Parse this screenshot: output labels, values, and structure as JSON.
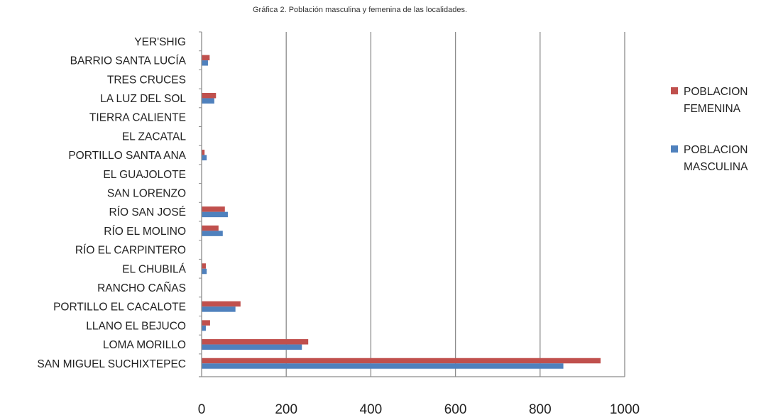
{
  "chart_data": {
    "type": "bar",
    "orientation": "horizontal",
    "title": "Gráfica 2. Población masculina y femenina de las localidades.",
    "xlabel": "",
    "ylabel": "",
    "xlim": [
      0,
      1000
    ],
    "xticks": [
      "0",
      "200",
      "400",
      "600",
      "800",
      "1000"
    ],
    "grid": "vertical",
    "legend_position": "right",
    "categories": [
      "SAN MIGUEL SUCHIXTEPEC",
      "LOMA MORILLO",
      "LLANO EL BEJUCO",
      "PORTILLO EL CACALOTE",
      "RANCHO CAÑAS",
      "EL CHUBILÁ",
      "RÍO EL CARPINTERO",
      "RÍO EL MOLINO",
      "RÍO SAN JOSÉ",
      "SAN LORENZO",
      "EL GUAJOLOTE",
      "PORTILLO SANTA ANA",
      "EL ZACATAL",
      "TIERRA CALIENTE",
      "LA LUZ DEL SOL",
      "TRES CRUCES",
      "BARRIO SANTA LUCÍA",
      "YER'SHIG"
    ],
    "series": [
      {
        "name": "POBLACION MASCULINA",
        "legend_lines": [
          "POBLACION",
          "MASCULINA"
        ],
        "color": "#4f81bd",
        "values": [
          855,
          237,
          10,
          80,
          0,
          12,
          0,
          50,
          62,
          0,
          0,
          12,
          0,
          0,
          30,
          0,
          15,
          0
        ]
      },
      {
        "name": "POBLACION FEMENINA",
        "legend_lines": [
          "POBLACION",
          "FEMENINA"
        ],
        "color": "#c0504d",
        "values": [
          943,
          252,
          20,
          92,
          0,
          10,
          0,
          40,
          55,
          0,
          0,
          7,
          0,
          0,
          34,
          0,
          19,
          0
        ]
      }
    ]
  }
}
